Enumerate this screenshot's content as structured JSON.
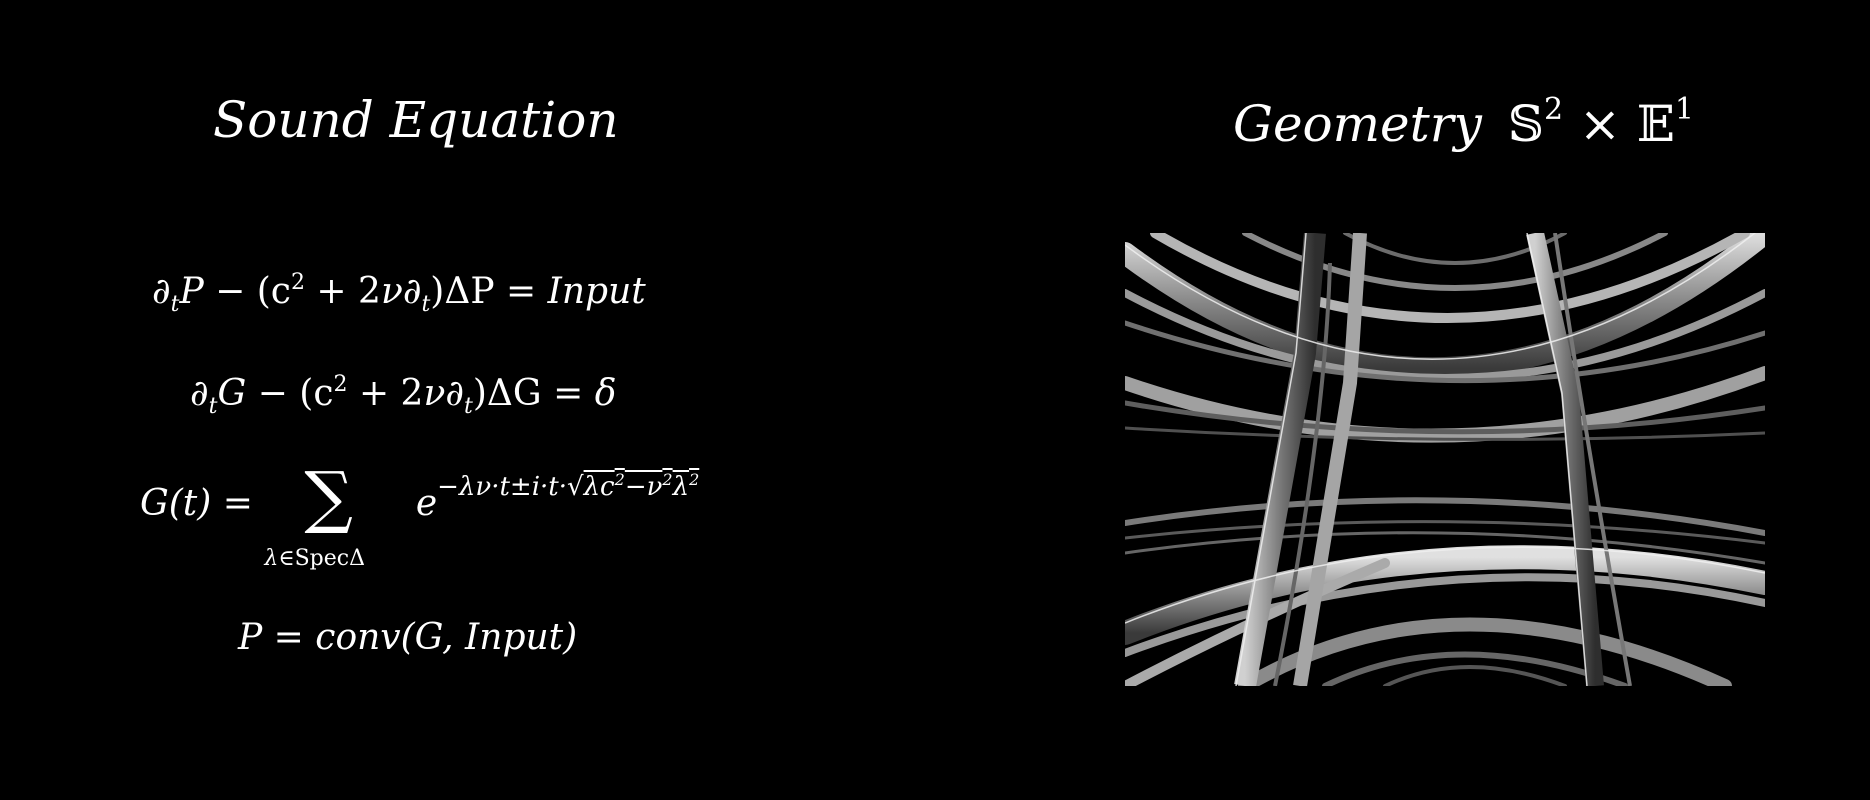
{
  "left_panel": {
    "title": "Sound  Equation",
    "equations": {
      "eq1": {
        "lhs_a": "∂",
        "sub_a": "t",
        "var_a": "P",
        "mid": " − (c",
        "sup2": "2",
        "mid2": " + 2",
        "nu": "ν",
        "d": "∂",
        "sub_b": "t",
        "mid3": ")ΔP = ",
        "rhs": "Input"
      },
      "eq2": {
        "lhs_a": "∂",
        "sub_a": "t",
        "var_a": "G",
        "mid": " − (c",
        "sup2": "2",
        "mid2": " + 2",
        "nu": "ν",
        "d": "∂",
        "sub_b": "t",
        "mid3": ")ΔG = ",
        "rhs": "δ"
      },
      "eq3": {
        "lhs": "G(t) = ",
        "sum": "∑",
        "sum_sub_a": "λ",
        "sum_sub_b": "∈SpecΔ",
        "base": "e",
        "exp_a": "−λν·t±i·t·√",
        "exp_b": "λc",
        "exp_sup1": "2",
        "exp_c": "−ν",
        "exp_sup2": "2",
        "exp_d": "λ",
        "exp_sup3": "2"
      },
      "eq4": {
        "lhs": "P = ",
        "rhs": "conv(G, Input)"
      }
    }
  },
  "right_panel": {
    "title_word": "Geometry",
    "title_s": "𝕊",
    "title_s_exp": "2",
    "title_times": " × ",
    "title_e": "𝔼",
    "title_e_exp": "1"
  },
  "colors": {
    "background": "#000000",
    "text": "#ffffff",
    "ribbon_light": "#c8c8c8",
    "ribbon_dark": "#3a3a3a"
  }
}
